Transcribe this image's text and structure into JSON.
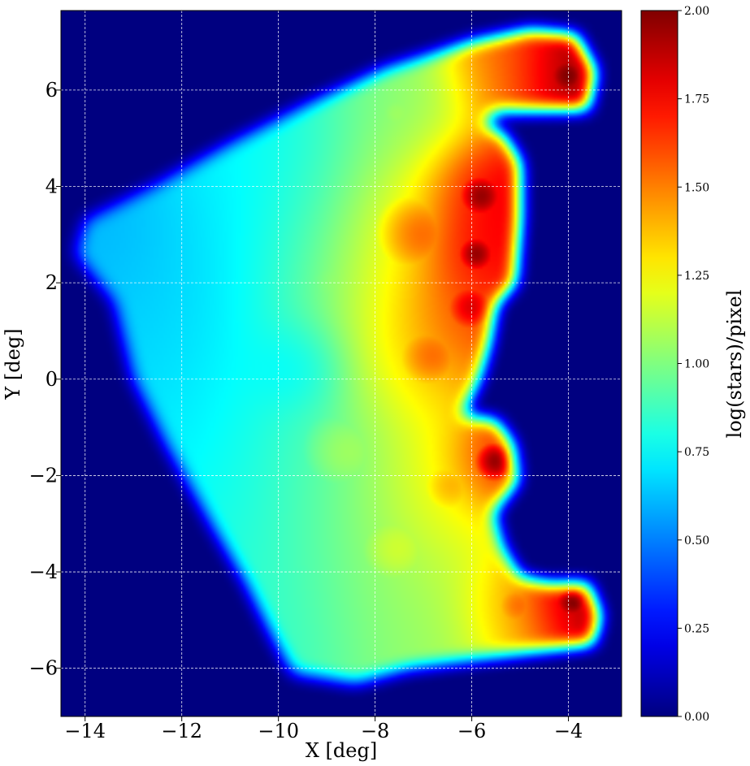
{
  "chart_data": {
    "type": "heatmap",
    "xlabel": "X [deg]",
    "ylabel": "Y [deg]",
    "xlim": [
      -14.5,
      -2.9
    ],
    "ylim": [
      -7.0,
      7.65
    ],
    "x_ticks": [
      {
        "value": -14,
        "label": "−14"
      },
      {
        "value": -12,
        "label": "−12"
      },
      {
        "value": -10,
        "label": "−10"
      },
      {
        "value": -8,
        "label": "−8"
      },
      {
        "value": -6,
        "label": "−6"
      },
      {
        "value": -4,
        "label": "−4"
      }
    ],
    "y_ticks": [
      {
        "value": -6,
        "label": "−6"
      },
      {
        "value": -4,
        "label": "−4"
      },
      {
        "value": -2,
        "label": "−2"
      },
      {
        "value": 0,
        "label": "0"
      },
      {
        "value": 2,
        "label": "2"
      },
      {
        "value": 4,
        "label": "4"
      },
      {
        "value": 6,
        "label": "6"
      }
    ],
    "grid": true,
    "colormap": "jet",
    "background_color": "#000080",
    "colorbar": {
      "label": "log(stars)/pixel",
      "range": [
        0.0,
        2.0
      ],
      "ticks": [
        {
          "value": 0.0,
          "label": "0.00"
        },
        {
          "value": 0.25,
          "label": "0.25"
        },
        {
          "value": 0.5,
          "label": "0.50"
        },
        {
          "value": 0.75,
          "label": "0.75"
        },
        {
          "value": 1.0,
          "label": "1.00"
        },
        {
          "value": 1.25,
          "label": "1.25"
        },
        {
          "value": 1.5,
          "label": "1.50"
        },
        {
          "value": 1.75,
          "label": "1.75"
        },
        {
          "value": 2.0,
          "label": "2.00"
        }
      ]
    },
    "region_outline": [
      [
        -14.0,
        3.3
      ],
      [
        -12.6,
        4.0
      ],
      [
        -11.0,
        4.9
      ],
      [
        -9.4,
        5.7
      ],
      [
        -7.8,
        6.45
      ],
      [
        -6.0,
        7.0
      ],
      [
        -4.8,
        7.25
      ],
      [
        -3.85,
        7.15
      ],
      [
        -3.45,
        6.4
      ],
      [
        -3.6,
        5.6
      ],
      [
        -5.5,
        5.55
      ],
      [
        -5.75,
        5.3
      ],
      [
        -5.35,
        5.1
      ],
      [
        -5.0,
        4.5
      ],
      [
        -5.0,
        3.3
      ],
      [
        -5.1,
        2.0
      ],
      [
        -5.5,
        1.55
      ],
      [
        -5.65,
        0.7
      ],
      [
        -5.85,
        0.0
      ],
      [
        -6.2,
        -0.75
      ],
      [
        -5.5,
        -0.85
      ],
      [
        -5.15,
        -1.35
      ],
      [
        -5.05,
        -2.1
      ],
      [
        -5.55,
        -2.8
      ],
      [
        -5.35,
        -3.5
      ],
      [
        -5.0,
        -4.1
      ],
      [
        -4.4,
        -4.25
      ],
      [
        -3.6,
        -4.25
      ],
      [
        -3.35,
        -4.9
      ],
      [
        -3.5,
        -5.5
      ],
      [
        -5.4,
        -5.75
      ],
      [
        -7.3,
        -6.0
      ],
      [
        -8.4,
        -6.3
      ],
      [
        -9.7,
        -6.1
      ],
      [
        -10.1,
        -5.4
      ],
      [
        -10.7,
        -4.2
      ],
      [
        -11.4,
        -3.0
      ],
      [
        -12.3,
        -1.4
      ],
      [
        -13.0,
        0.0
      ],
      [
        -13.4,
        1.6
      ],
      [
        -14.2,
        2.6
      ]
    ],
    "density_sources": [
      {
        "x": -13.5,
        "y": 3.2,
        "value": 0.5,
        "sigma": 0.9
      },
      {
        "x": -12.5,
        "y": 2.0,
        "value": 0.55,
        "sigma": 1.3
      },
      {
        "x": -11.0,
        "y": 3.2,
        "value": 0.6,
        "sigma": 1.5
      },
      {
        "x": -11.5,
        "y": 0.0,
        "value": 0.6,
        "sigma": 1.5
      },
      {
        "x": -10.5,
        "y": -2.0,
        "value": 0.65,
        "sigma": 1.6
      },
      {
        "x": -9.6,
        "y": 0.2,
        "value": 0.5,
        "sigma": 0.6
      },
      {
        "x": -9.5,
        "y": -4.5,
        "value": 0.75,
        "sigma": 1.5
      },
      {
        "x": -9.5,
        "y": 4.5,
        "value": 0.7,
        "sigma": 1.5
      },
      {
        "x": -8.5,
        "y": 2.0,
        "value": 1.0,
        "sigma": 1.6
      },
      {
        "x": -8.5,
        "y": -1.5,
        "value": 1.0,
        "sigma": 1.6
      },
      {
        "x": -7.5,
        "y": -3.5,
        "value": 1.1,
        "sigma": 1.4
      },
      {
        "x": -7.0,
        "y": 3.0,
        "value": 1.5,
        "sigma": 1.3
      },
      {
        "x": -6.8,
        "y": 0.5,
        "value": 1.5,
        "sigma": 1.1
      },
      {
        "x": -6.4,
        "y": -2.2,
        "value": 1.35,
        "sigma": 1.0
      },
      {
        "x": -6.0,
        "y": 1.5,
        "value": 1.8,
        "sigma": 0.8
      },
      {
        "x": -5.8,
        "y": 3.8,
        "value": 1.95,
        "sigma": 0.7
      },
      {
        "x": -5.9,
        "y": 2.6,
        "value": 1.95,
        "sigma": 0.6
      },
      {
        "x": -5.5,
        "y": -1.7,
        "value": 1.95,
        "sigma": 0.6
      },
      {
        "x": -4.0,
        "y": 6.3,
        "value": 2.0,
        "sigma": 0.7
      },
      {
        "x": -5.2,
        "y": 6.3,
        "value": 1.5,
        "sigma": 0.8
      },
      {
        "x": -3.9,
        "y": -4.6,
        "value": 2.0,
        "sigma": 0.6
      },
      {
        "x": -5.0,
        "y": -4.7,
        "value": 1.5,
        "sigma": 0.8
      },
      {
        "x": -7.0,
        "y": -5.2,
        "value": 1.0,
        "sigma": 1.2
      },
      {
        "x": -7.5,
        "y": 5.5,
        "value": 1.0,
        "sigma": 1.0
      }
    ]
  },
  "colors": {
    "axes_background": "#000080",
    "grid_line": "#ffffff",
    "axis_frame": "#000000"
  }
}
